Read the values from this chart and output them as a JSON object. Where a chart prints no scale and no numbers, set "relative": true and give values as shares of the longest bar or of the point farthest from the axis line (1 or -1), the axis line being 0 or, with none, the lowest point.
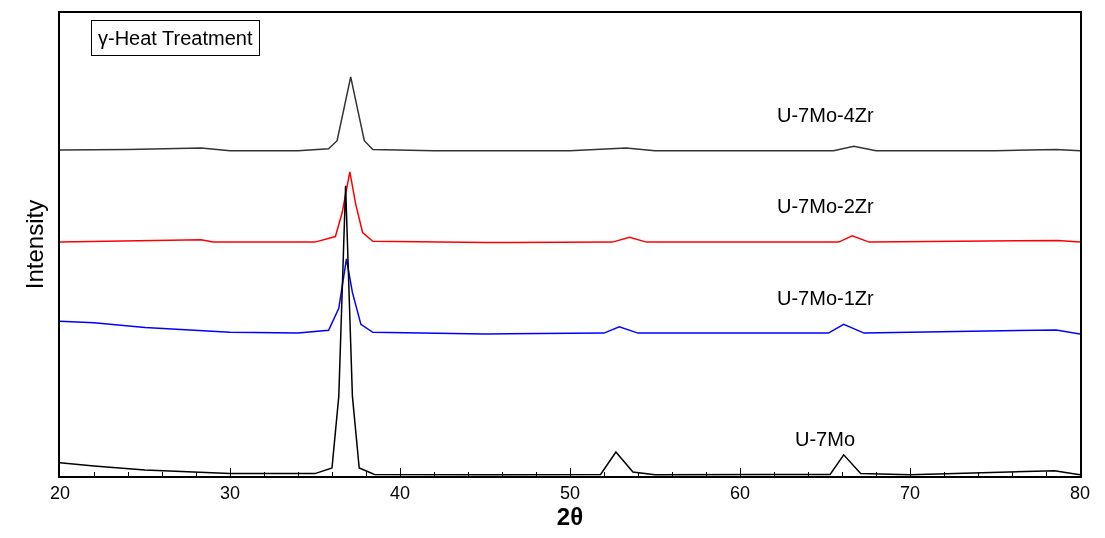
{
  "chart_data": {
    "type": "line",
    "relative": true,
    "xlabel": "2θ",
    "ylabel": "Intensity",
    "xlim": [
      20,
      80
    ],
    "xticks": [
      20,
      30,
      40,
      50,
      60,
      70,
      80
    ],
    "legend": false,
    "annotations": [
      "γ-Heat Treatment"
    ],
    "series": [
      {
        "name": "U-7Mo-4Zr",
        "color": "#333333",
        "x": [
          20,
          24,
          28.3,
          30,
          34,
          35.8,
          36.3,
          36.7,
          37.1,
          37.5,
          37.9,
          38.4,
          42,
          50,
          53.3,
          55,
          60,
          65.5,
          66.7,
          68,
          75,
          78.6,
          80
        ],
        "values": [
          0.817,
          0.818,
          0.822,
          0.815,
          0.815,
          0.82,
          0.84,
          0.92,
          1.0,
          0.92,
          0.84,
          0.818,
          0.815,
          0.815,
          0.822,
          0.815,
          0.815,
          0.815,
          0.826,
          0.815,
          0.815,
          0.818,
          0.815
        ]
      },
      {
        "name": "U-7Mo-2Zr",
        "color": "#ff0000",
        "x": [
          20,
          28.3,
          29,
          35,
          36.2,
          36.6,
          37.05,
          37.4,
          37.8,
          38.4,
          45,
          52.5,
          53.5,
          54.5,
          65.8,
          66.6,
          67.6,
          78.7,
          80
        ],
        "values": [
          0.586,
          0.592,
          0.586,
          0.586,
          0.6,
          0.66,
          0.762,
          0.68,
          0.61,
          0.588,
          0.585,
          0.586,
          0.598,
          0.586,
          0.586,
          0.602,
          0.586,
          0.59,
          0.586
        ]
      },
      {
        "name": "U-7Mo-1Zr",
        "color": "#0000ff",
        "x": [
          20,
          22,
          25,
          30,
          34,
          35.8,
          36.4,
          36.85,
          37.2,
          37.7,
          38.4,
          45,
          52,
          52.9,
          54,
          65.2,
          66.1,
          67.3,
          78.6,
          80
        ],
        "values": [
          0.388,
          0.384,
          0.372,
          0.36,
          0.358,
          0.365,
          0.42,
          0.544,
          0.46,
          0.38,
          0.36,
          0.356,
          0.358,
          0.374,
          0.358,
          0.358,
          0.38,
          0.358,
          0.366,
          0.356
        ]
      },
      {
        "name": "U-7Mo",
        "color": "#000000",
        "x": [
          20,
          22,
          25,
          30,
          35,
          36.0,
          36.4,
          36.8,
          37.2,
          37.6,
          38.5,
          45,
          51.8,
          52.7,
          53.7,
          55,
          65.3,
          66.1,
          67.1,
          70,
          78.5,
          80
        ],
        "values": [
          0.033,
          0.025,
          0.015,
          0.006,
          0.006,
          0.02,
          0.2,
          0.727,
          0.2,
          0.02,
          0.004,
          0.003,
          0.004,
          0.06,
          0.01,
          0.003,
          0.004,
          0.053,
          0.006,
          0.003,
          0.013,
          0.003
        ]
      }
    ]
  }
}
